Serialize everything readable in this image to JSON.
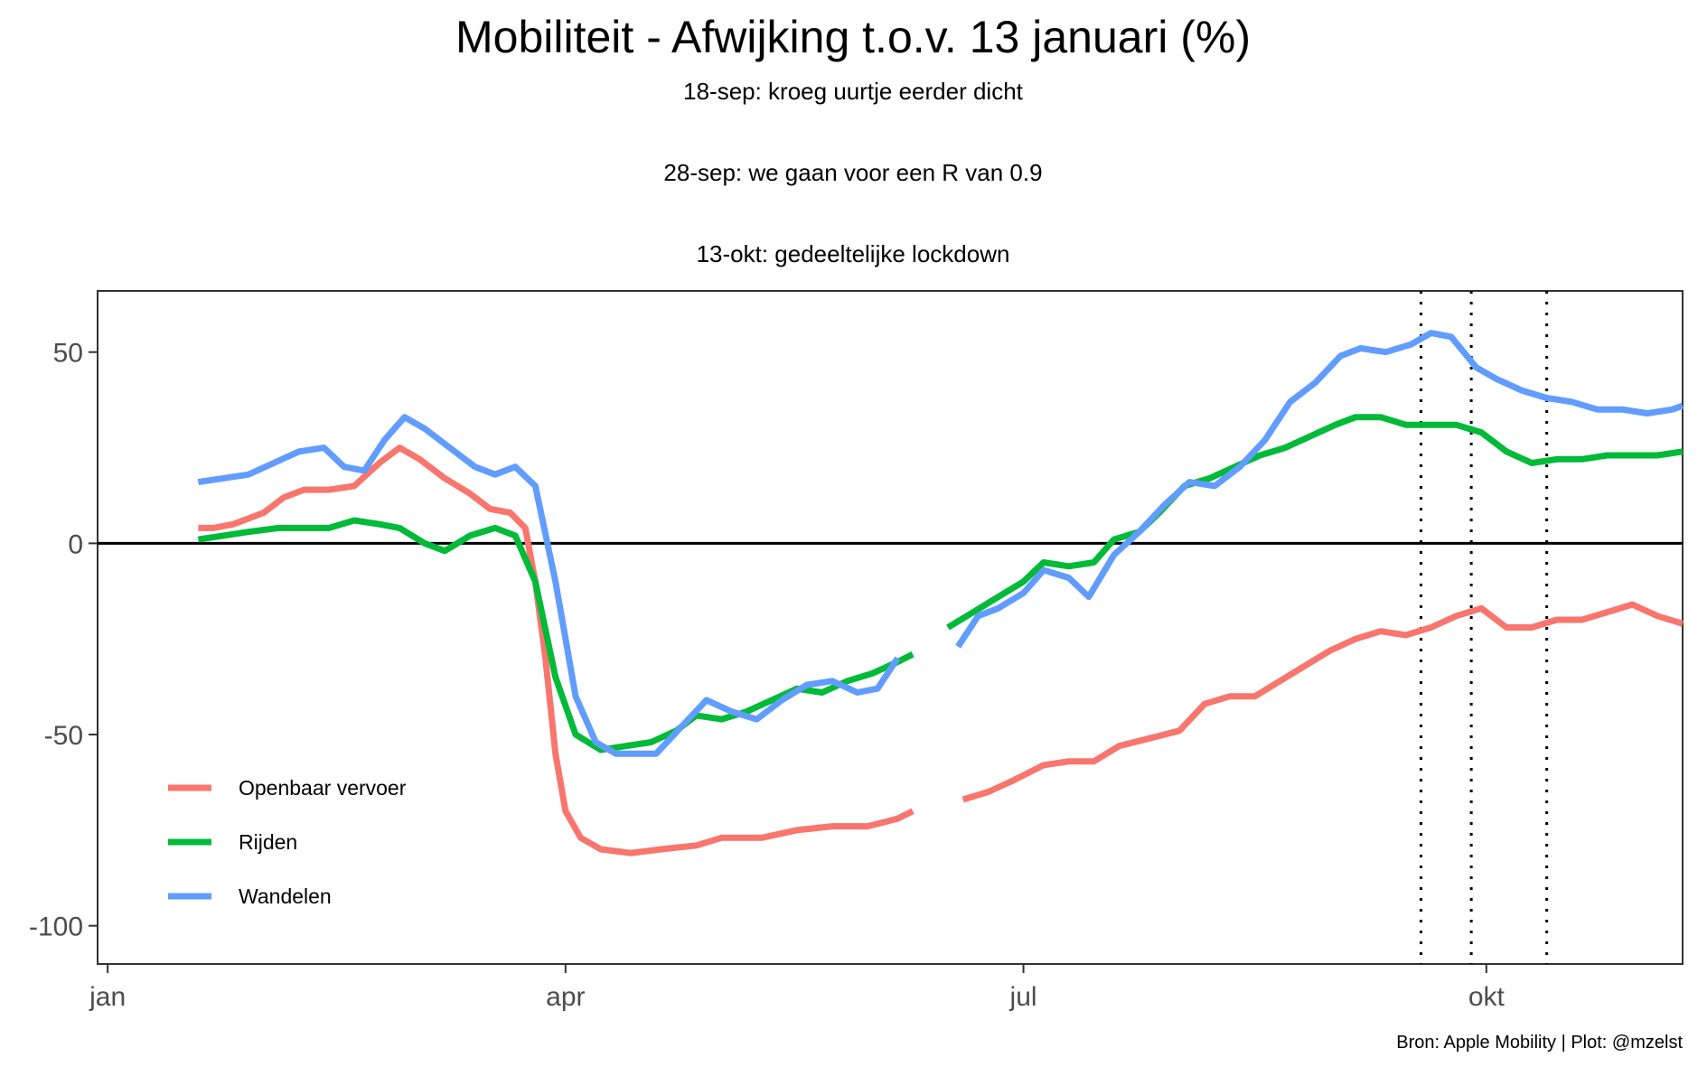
{
  "chart_data": {
    "type": "line",
    "title": "Mobiliteit - Afwijking t.o.v. 13 januari (%)",
    "subtitle_lines": [
      "18-sep: kroeg uurtje eerder dicht",
      "28-sep: we gaan voor een R van 0.9",
      "13-okt: gedeeltelijke lockdown"
    ],
    "caption": "Bron: Apple Mobility | Plot: @mzelst",
    "xlabel": "",
    "ylabel": "",
    "ylim": [
      -110,
      66
    ],
    "y_ticks": [
      50,
      0,
      -50,
      -100
    ],
    "y_tick_labels": [
      "50",
      "0",
      "-50",
      "-100"
    ],
    "x_ticks": [
      "2020-01-01",
      "2020-04-01",
      "2020-07-01",
      "2020-10-01"
    ],
    "x_tick_labels": [
      "jan",
      "apr",
      "jul",
      "okt"
    ],
    "x_domain": [
      "2019-12-30",
      "2020-11-09"
    ],
    "grid": false,
    "legend_position": "bottom-left inside",
    "reference_line_y": 0,
    "vlines": [
      "2020-09-18",
      "2020-09-28",
      "2020-10-13"
    ],
    "series": [
      {
        "name": "Openbaar vervoer",
        "color": "#F8766D",
        "points": [
          [
            "2020-01-19",
            4
          ],
          [
            "2020-01-22",
            4
          ],
          [
            "2020-01-26",
            5
          ],
          [
            "2020-02-01",
            8
          ],
          [
            "2020-02-05",
            12
          ],
          [
            "2020-02-09",
            14
          ],
          [
            "2020-02-14",
            14
          ],
          [
            "2020-02-19",
            15
          ],
          [
            "2020-02-24",
            21
          ],
          [
            "2020-02-28",
            25
          ],
          [
            "2020-03-03",
            22
          ],
          [
            "2020-03-08",
            17
          ],
          [
            "2020-03-13",
            13
          ],
          [
            "2020-03-17",
            9
          ],
          [
            "2020-03-21",
            8
          ],
          [
            "2020-03-24",
            4
          ],
          [
            "2020-03-26",
            -10
          ],
          [
            "2020-03-28",
            -30
          ],
          [
            "2020-03-30",
            -55
          ],
          [
            "2020-04-01",
            -70
          ],
          [
            "2020-04-04",
            -77
          ],
          [
            "2020-04-08",
            -80
          ],
          [
            "2020-04-14",
            -81
          ],
          [
            "2020-04-20",
            -80
          ],
          [
            "2020-04-27",
            -79
          ],
          [
            "2020-05-02",
            -77
          ],
          [
            "2020-05-10",
            -77
          ],
          [
            "2020-05-17",
            -75
          ],
          [
            "2020-05-24",
            -74
          ],
          [
            "2020-05-31",
            -74
          ],
          [
            "2020-06-06",
            -72
          ],
          [
            "2020-06-09",
            -70
          ],
          null,
          [
            "2020-06-19",
            -67
          ],
          [
            "2020-06-24",
            -65
          ],
          [
            "2020-06-29",
            -62
          ],
          [
            "2020-07-05",
            -58
          ],
          [
            "2020-07-10",
            -57
          ],
          [
            "2020-07-15",
            -57
          ],
          [
            "2020-07-20",
            -53
          ],
          [
            "2020-07-26",
            -51
          ],
          [
            "2020-08-01",
            -49
          ],
          [
            "2020-08-06",
            -42
          ],
          [
            "2020-08-11",
            -40
          ],
          [
            "2020-08-16",
            -40
          ],
          [
            "2020-08-21",
            -36
          ],
          [
            "2020-08-26",
            -32
          ],
          [
            "2020-08-31",
            -28
          ],
          [
            "2020-09-05",
            -25
          ],
          [
            "2020-09-10",
            -23
          ],
          [
            "2020-09-15",
            -24
          ],
          [
            "2020-09-20",
            -22
          ],
          [
            "2020-09-25",
            -19
          ],
          [
            "2020-09-30",
            -17
          ],
          [
            "2020-10-05",
            -22
          ],
          [
            "2020-10-10",
            -22
          ],
          [
            "2020-10-15",
            -20
          ],
          [
            "2020-10-20",
            -20
          ],
          [
            "2020-10-25",
            -18
          ],
          [
            "2020-10-30",
            -16
          ],
          [
            "2020-11-04",
            -19
          ],
          [
            "2020-11-09",
            -21
          ]
        ]
      },
      {
        "name": "Rijden",
        "color": "#00BA38",
        "points": [
          [
            "2020-01-19",
            1
          ],
          [
            "2020-01-24",
            2
          ],
          [
            "2020-01-29",
            3
          ],
          [
            "2020-02-04",
            4
          ],
          [
            "2020-02-09",
            4
          ],
          [
            "2020-02-14",
            4
          ],
          [
            "2020-02-19",
            6
          ],
          [
            "2020-02-24",
            5
          ],
          [
            "2020-02-28",
            4
          ],
          [
            "2020-03-04",
            0
          ],
          [
            "2020-03-08",
            -2
          ],
          [
            "2020-03-13",
            2
          ],
          [
            "2020-03-18",
            4
          ],
          [
            "2020-03-22",
            2
          ],
          [
            "2020-03-26",
            -10
          ],
          [
            "2020-03-30",
            -35
          ],
          [
            "2020-04-03",
            -50
          ],
          [
            "2020-04-08",
            -54
          ],
          [
            "2020-04-13",
            -53
          ],
          [
            "2020-04-18",
            -52
          ],
          [
            "2020-04-23",
            -49
          ],
          [
            "2020-04-27",
            -45
          ],
          [
            "2020-05-02",
            -46
          ],
          [
            "2020-05-07",
            -44
          ],
          [
            "2020-05-12",
            -41
          ],
          [
            "2020-05-17",
            -38
          ],
          [
            "2020-05-22",
            -39
          ],
          [
            "2020-05-27",
            -36
          ],
          [
            "2020-06-01",
            -34
          ],
          [
            "2020-06-06",
            -31
          ],
          [
            "2020-06-09",
            -29
          ],
          null,
          [
            "2020-06-16",
            -22
          ],
          [
            "2020-06-21",
            -18
          ],
          [
            "2020-06-26",
            -14
          ],
          [
            "2020-07-01",
            -10
          ],
          [
            "2020-07-05",
            -5
          ],
          [
            "2020-07-10",
            -6
          ],
          [
            "2020-07-15",
            -5
          ],
          [
            "2020-07-19",
            1
          ],
          [
            "2020-07-24",
            3
          ],
          [
            "2020-07-28",
            8
          ],
          [
            "2020-08-02",
            15
          ],
          [
            "2020-08-07",
            17
          ],
          [
            "2020-08-12",
            20
          ],
          [
            "2020-08-17",
            23
          ],
          [
            "2020-08-22",
            25
          ],
          [
            "2020-08-27",
            28
          ],
          [
            "2020-09-01",
            31
          ],
          [
            "2020-09-05",
            33
          ],
          [
            "2020-09-10",
            33
          ],
          [
            "2020-09-15",
            31
          ],
          [
            "2020-09-20",
            31
          ],
          [
            "2020-09-25",
            31
          ],
          [
            "2020-09-30",
            29
          ],
          [
            "2020-10-05",
            24
          ],
          [
            "2020-10-10",
            21
          ],
          [
            "2020-10-15",
            22
          ],
          [
            "2020-10-20",
            22
          ],
          [
            "2020-10-25",
            23
          ],
          [
            "2020-10-30",
            23
          ],
          [
            "2020-11-04",
            23
          ],
          [
            "2020-11-09",
            24
          ]
        ]
      },
      {
        "name": "Wandelen",
        "color": "#619CFF",
        "points": [
          [
            "2020-01-19",
            16
          ],
          [
            "2020-01-24",
            17
          ],
          [
            "2020-01-29",
            18
          ],
          [
            "2020-02-03",
            21
          ],
          [
            "2020-02-08",
            24
          ],
          [
            "2020-02-13",
            25
          ],
          [
            "2020-02-17",
            20
          ],
          [
            "2020-02-21",
            19
          ],
          [
            "2020-02-25",
            27
          ],
          [
            "2020-02-29",
            33
          ],
          [
            "2020-03-04",
            30
          ],
          [
            "2020-03-09",
            25
          ],
          [
            "2020-03-14",
            20
          ],
          [
            "2020-03-18",
            18
          ],
          [
            "2020-03-22",
            20
          ],
          [
            "2020-03-26",
            15
          ],
          [
            "2020-03-30",
            -10
          ],
          [
            "2020-04-03",
            -40
          ],
          [
            "2020-04-07",
            -52
          ],
          [
            "2020-04-11",
            -55
          ],
          [
            "2020-04-15",
            -55
          ],
          [
            "2020-04-19",
            -55
          ],
          [
            "2020-04-24",
            -48
          ],
          [
            "2020-04-29",
            -41
          ],
          [
            "2020-05-04",
            -44
          ],
          [
            "2020-05-09",
            -46
          ],
          [
            "2020-05-14",
            -41
          ],
          [
            "2020-05-19",
            -37
          ],
          [
            "2020-05-24",
            -36
          ],
          [
            "2020-05-29",
            -39
          ],
          [
            "2020-06-02",
            -38
          ],
          [
            "2020-06-06",
            -30
          ],
          null,
          [
            "2020-06-18",
            -27
          ],
          [
            "2020-06-22",
            -19
          ],
          [
            "2020-06-26",
            -17
          ],
          [
            "2020-07-01",
            -13
          ],
          [
            "2020-07-05",
            -7
          ],
          [
            "2020-07-10",
            -9
          ],
          [
            "2020-07-14",
            -14
          ],
          [
            "2020-07-19",
            -3
          ],
          [
            "2020-07-24",
            3
          ],
          [
            "2020-07-29",
            10
          ],
          [
            "2020-08-03",
            16
          ],
          [
            "2020-08-08",
            15
          ],
          [
            "2020-08-13",
            20
          ],
          [
            "2020-08-18",
            27
          ],
          [
            "2020-08-23",
            37
          ],
          [
            "2020-08-28",
            42
          ],
          [
            "2020-09-02",
            49
          ],
          [
            "2020-09-06",
            51
          ],
          [
            "2020-09-11",
            50
          ],
          [
            "2020-09-16",
            52
          ],
          [
            "2020-09-20",
            55
          ],
          [
            "2020-09-24",
            54
          ],
          [
            "2020-09-29",
            46
          ],
          [
            "2020-10-03",
            43
          ],
          [
            "2020-10-08",
            40
          ],
          [
            "2020-10-13",
            38
          ],
          [
            "2020-10-18",
            37
          ],
          [
            "2020-10-23",
            35
          ],
          [
            "2020-10-28",
            35
          ],
          [
            "2020-11-02",
            34
          ],
          [
            "2020-11-07",
            35
          ],
          [
            "2020-11-09",
            36
          ]
        ]
      }
    ]
  }
}
